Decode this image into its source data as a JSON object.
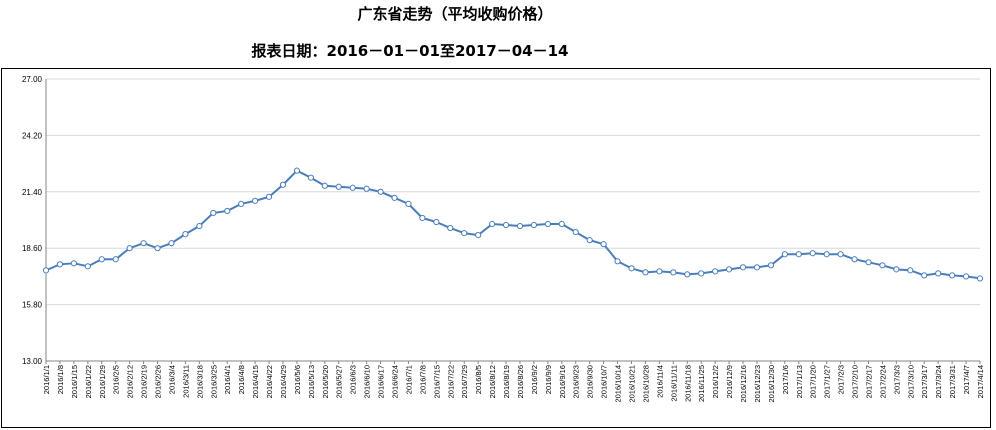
{
  "chart_data": {
    "type": "line",
    "title": "广东省走势（平均收购价格）",
    "subtitle": "报表日期：2016－01－01至2017－04－14",
    "ylim": [
      13.0,
      27.0
    ],
    "yticks": [
      "13.00",
      "15.80",
      "18.60",
      "21.40",
      "24.20",
      "27.00"
    ],
    "grid": true,
    "series_color": "#4a7ebb",
    "x": [
      "2016/1/1",
      "2016/1/8",
      "2016/1/15",
      "2016/1/22",
      "2016/1/29",
      "2016/2/5",
      "2016/2/12",
      "2016/2/19",
      "2016/2/26",
      "2016/3/4",
      "2016/3/11",
      "2016/3/18",
      "2016/3/25",
      "2016/4/1",
      "2016/4/8",
      "2016/4/15",
      "2016/4/22",
      "2016/4/29",
      "2016/5/6",
      "2016/5/13",
      "2016/5/20",
      "2016/5/27",
      "2016/6/3",
      "2016/6/10",
      "2016/6/17",
      "2016/6/24",
      "2016/7/1",
      "2016/7/8",
      "2016/7/15",
      "2016/7/22",
      "2016/7/29",
      "2016/8/5",
      "2016/8/12",
      "2016/8/19",
      "2016/8/26",
      "2016/9/2",
      "2016/9/9",
      "2016/9/16",
      "2016/9/23",
      "2016/9/30",
      "2016/10/7",
      "2016/10/14",
      "2016/10/21",
      "2016/10/28",
      "2016/11/4",
      "2016/11/11",
      "2016/11/18",
      "2016/11/25",
      "2016/12/2",
      "2016/12/9",
      "2016/12/16",
      "2016/12/23",
      "2016/12/30",
      "2017/1/6",
      "2017/1/13",
      "2017/1/20",
      "2017/1/27",
      "2017/2/3",
      "2017/2/10",
      "2017/2/17",
      "2017/2/24",
      "2017/3/3",
      "2017/3/10",
      "2017/3/17",
      "2017/3/24",
      "2017/3/31",
      "2017/4/7",
      "2017/4/14"
    ],
    "xticks": [
      "2016/1/1",
      "2016/1/8",
      "2016/1/15",
      "2016/1/22",
      "2016/1/29",
      "2016/2/5",
      "2016/2/12",
      "2016/2/19",
      "2016/2/26",
      "2016/3/4",
      "2016/3/11",
      "2016/3/18",
      "2016/3/25",
      "2016/4/1",
      "2016/4/8",
      "2016/4/15",
      "2016/4/22",
      "2016/4/29",
      "2016/5/6",
      "2016/5/13",
      "2016/5/20",
      "2016/5/27",
      "2016/6/3",
      "2016/6/10",
      "2016/6/17",
      "2016/6/24",
      "2016/7/1",
      "2016/7/8",
      "2016/7/15",
      "2016/7/22",
      "2016/7/29",
      "2016/8/5",
      "2016/8/12",
      "2016/8/19",
      "2016/8/26",
      "2016/9/2",
      "2016/9/9",
      "2016/9/16",
      "2016/9/23",
      "2016/9/30",
      "2016/10/7",
      "2016/10/14",
      "2016/10/21",
      "2016/10/28",
      "2016/11/4",
      "2016/11/11",
      "2016/11/18",
      "2016/11/25",
      "2016/12/2",
      "2016/12/9",
      "2016/12/16",
      "2016/12/23",
      "2016/12/30",
      "2017/1/6",
      "2017/1/13",
      "2017/1/20",
      "2017/1/27",
      "2017/2/3",
      "2017/2/10",
      "2017/2/17",
      "2017/2/24",
      "2017/3/3",
      "2017/3/10",
      "2017/3/17",
      "2017/3/24",
      "2017/3/31",
      "2017/4/7",
      "2017/4/14"
    ],
    "values": [
      17.5,
      17.8,
      17.85,
      17.7,
      18.05,
      18.05,
      18.6,
      18.85,
      18.6,
      18.85,
      19.3,
      19.7,
      20.35,
      20.45,
      20.8,
      20.95,
      21.15,
      21.75,
      22.45,
      22.1,
      21.7,
      21.65,
      21.6,
      21.55,
      21.4,
      21.1,
      20.8,
      20.1,
      19.9,
      19.6,
      19.35,
      19.25,
      19.8,
      19.75,
      19.7,
      19.75,
      19.8,
      19.8,
      19.4,
      19.0,
      18.8,
      17.95,
      17.6,
      17.4,
      17.45,
      17.4,
      17.3,
      17.35,
      17.45,
      17.55,
      17.65,
      17.65,
      17.75,
      18.3,
      18.3,
      18.35,
      18.3,
      18.3,
      18.05,
      17.9,
      17.75,
      17.55,
      17.5,
      17.25,
      17.35,
      17.25,
      17.2,
      17.1
    ]
  }
}
